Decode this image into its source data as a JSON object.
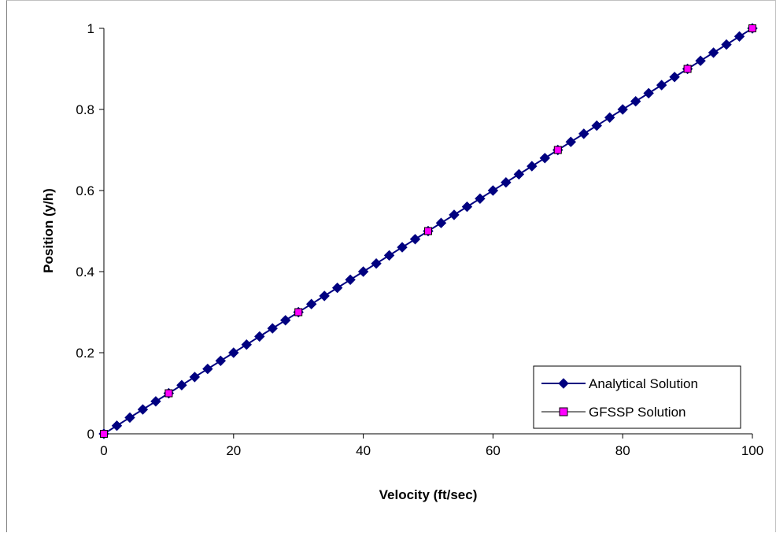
{
  "chart_data": {
    "type": "scatter",
    "title": "",
    "xlabel": "Velocity  (ft/sec)",
    "ylabel": "Position  (y/h)",
    "xlim": [
      0,
      100
    ],
    "ylim": [
      0,
      1
    ],
    "x_ticks": [
      "0",
      "20",
      "40",
      "60",
      "80",
      "100"
    ],
    "y_ticks": [
      "0",
      "0.2",
      "0.4",
      "0.6",
      "0.8",
      "1"
    ],
    "x_tick_values": [
      0,
      20,
      40,
      60,
      80,
      100
    ],
    "y_tick_values": [
      0,
      0.2,
      0.4,
      0.6,
      0.8,
      1
    ],
    "grid": false,
    "legend_position": "bottom-right",
    "series": [
      {
        "name": "Analytical Solution",
        "marker": "diamond",
        "line": true,
        "color": "#000080",
        "x": [
          0,
          2,
          4,
          6,
          8,
          10,
          12,
          14,
          16,
          18,
          20,
          22,
          24,
          26,
          28,
          30,
          32,
          34,
          36,
          38,
          40,
          42,
          44,
          46,
          48,
          50,
          52,
          54,
          56,
          58,
          60,
          62,
          64,
          66,
          68,
          70,
          72,
          74,
          76,
          78,
          80,
          82,
          84,
          86,
          88,
          90,
          92,
          94,
          96,
          98,
          100
        ],
        "y": [
          0,
          0.02,
          0.04,
          0.06,
          0.08,
          0.1,
          0.12,
          0.14,
          0.16,
          0.18,
          0.2,
          0.22,
          0.24,
          0.26,
          0.28,
          0.3,
          0.32,
          0.34,
          0.36,
          0.38,
          0.4,
          0.42,
          0.44,
          0.46,
          0.48,
          0.5,
          0.52,
          0.54,
          0.56,
          0.58,
          0.6,
          0.62,
          0.64,
          0.66,
          0.68,
          0.7,
          0.72,
          0.74,
          0.76,
          0.78,
          0.8,
          0.82,
          0.84,
          0.86,
          0.88,
          0.9,
          0.92,
          0.94,
          0.96,
          0.98,
          1
        ]
      },
      {
        "name": "GFSSP Solution",
        "marker": "square",
        "line": false,
        "color": "#ff00ff",
        "x": [
          0,
          10,
          30,
          50,
          70,
          90,
          100
        ],
        "y": [
          0,
          0.1,
          0.3,
          0.5,
          0.7,
          0.9,
          1
        ]
      }
    ]
  }
}
